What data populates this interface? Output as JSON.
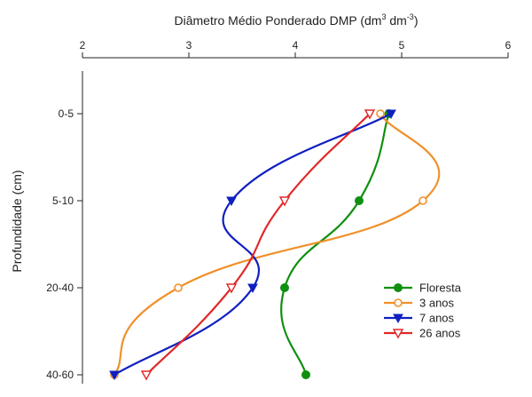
{
  "chart_data": {
    "type": "line",
    "title": "",
    "xlabel": "Diâmetro Médio Ponderado DMP (dm",
    "xlabel_sup1": "3",
    "xlabel_mid": " dm",
    "xlabel_sup2": "-3",
    "xlabel_end": ")",
    "ylabel": "Profundidade (cm)",
    "xlim": [
      2,
      6
    ],
    "xticks": [
      "2",
      "3",
      "4",
      "5",
      "6"
    ],
    "categories": [
      "0-5",
      "5-10",
      "20-40",
      "40-60"
    ],
    "axis_position": "top",
    "grid": false,
    "legend_position": "bottom-right",
    "series": [
      {
        "name": "Floresta",
        "color": "#109010",
        "marker": "filled-circle",
        "values": [
          4.88,
          4.6,
          3.9,
          4.1
        ]
      },
      {
        "name": "3 anos",
        "color": "#f0902a",
        "marker": "open-circle",
        "values": [
          4.8,
          5.2,
          2.9,
          2.3
        ]
      },
      {
        "name": "7 anos",
        "color": "#1020c0",
        "marker": "filled-triangle",
        "values": [
          4.9,
          3.4,
          3.6,
          2.3
        ]
      },
      {
        "name": "26 anos",
        "color": "#e02828",
        "marker": "open-triangle",
        "values": [
          4.7,
          3.9,
          3.4,
          2.6
        ]
      }
    ]
  }
}
